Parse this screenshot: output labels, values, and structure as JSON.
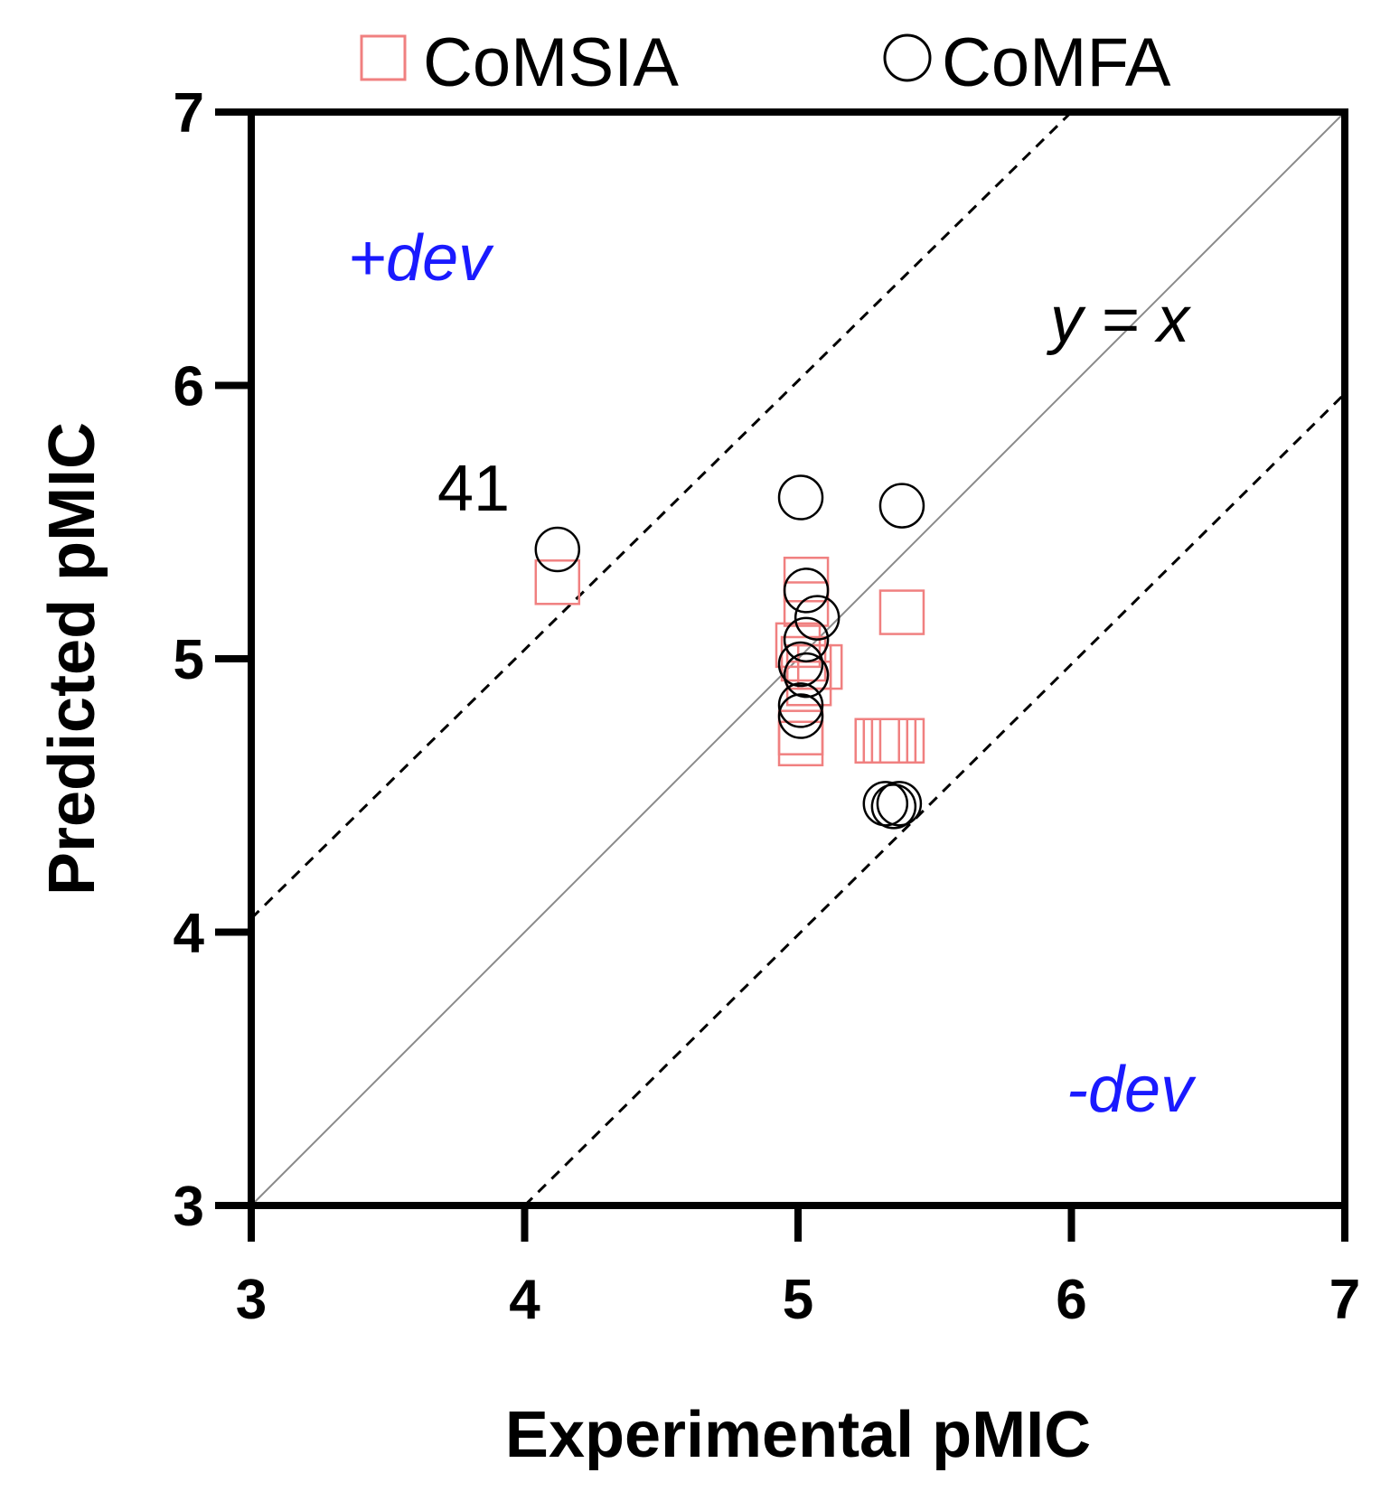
{
  "chart_data": {
    "type": "scatter",
    "title": "",
    "xlabel": "Experimental pMIC",
    "ylabel": "Predicted pMIC",
    "xlim": [
      3,
      7
    ],
    "ylim": [
      3,
      7
    ],
    "xticks": [
      "3",
      "4",
      "5",
      "6",
      "7"
    ],
    "yticks": [
      "3",
      "4",
      "5",
      "6",
      "7"
    ],
    "grid": false,
    "legend_position": "top",
    "series": [
      {
        "name": "CoMSIA",
        "marker": "square",
        "color": "#f08080",
        "points": [
          {
            "x": 4.12,
            "y": 5.28
          },
          {
            "x": 5.03,
            "y": 5.29
          },
          {
            "x": 5.03,
            "y": 5.2
          },
          {
            "x": 5.38,
            "y": 5.17
          },
          {
            "x": 5.0,
            "y": 5.05
          },
          {
            "x": 5.02,
            "y": 5.0
          },
          {
            "x": 5.04,
            "y": 4.97
          },
          {
            "x": 5.08,
            "y": 4.97
          },
          {
            "x": 5.04,
            "y": 4.91
          },
          {
            "x": 5.01,
            "y": 4.73
          },
          {
            "x": 5.01,
            "y": 4.69
          },
          {
            "x": 5.29,
            "y": 4.7
          },
          {
            "x": 5.32,
            "y": 4.7
          },
          {
            "x": 5.35,
            "y": 4.7
          },
          {
            "x": 5.38,
            "y": 4.7
          }
        ]
      },
      {
        "name": "CoMFA",
        "marker": "circle",
        "color": "#000000",
        "points": [
          {
            "x": 4.12,
            "y": 5.4,
            "label": "41"
          },
          {
            "x": 5.01,
            "y": 5.59
          },
          {
            "x": 5.38,
            "y": 5.56
          },
          {
            "x": 5.03,
            "y": 5.25
          },
          {
            "x": 5.07,
            "y": 5.15
          },
          {
            "x": 5.03,
            "y": 5.07
          },
          {
            "x": 5.01,
            "y": 4.98
          },
          {
            "x": 5.03,
            "y": 4.94
          },
          {
            "x": 5.01,
            "y": 4.83
          },
          {
            "x": 5.01,
            "y": 4.79
          },
          {
            "x": 5.32,
            "y": 4.47
          },
          {
            "x": 5.35,
            "y": 4.46
          },
          {
            "x": 5.37,
            "y": 4.47
          }
        ]
      }
    ],
    "reference_lines": [
      {
        "name": "y = x",
        "style": "solid",
        "color": "#8a8a8a",
        "x1": 3,
        "y1": 3,
        "x2": 7,
        "y2": 7
      },
      {
        "name": "+dev",
        "style": "dashed",
        "color": "#000000",
        "x1": 3,
        "y1": 4.05,
        "x2": 6.0,
        "y2": 7.0
      },
      {
        "name": "-dev",
        "style": "dashed",
        "color": "#000000",
        "x1": 4.0,
        "y1": 3.0,
        "x2": 7.0,
        "y2": 5.97
      }
    ],
    "annotations": {
      "plus_dev": "+dev",
      "minus_dev": "-dev",
      "identity": "y = x",
      "outlier_label": "41"
    }
  }
}
